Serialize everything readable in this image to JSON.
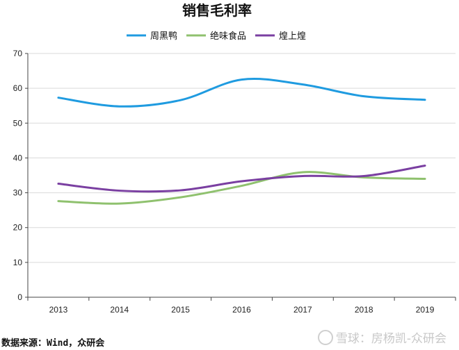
{
  "chart_data": {
    "type": "line",
    "title": "销售毛利率",
    "categories": [
      "2013",
      "2014",
      "2015",
      "2016",
      "2017",
      "2018",
      "2019"
    ],
    "ylim": [
      0,
      70
    ],
    "yticks": [
      0,
      10,
      20,
      30,
      40,
      50,
      60,
      70
    ],
    "grid": "horizontal",
    "legend_position": "top",
    "series": [
      {
        "name": "周黑鸭",
        "color": "#1f9be0",
        "values": [
          57.3,
          54.8,
          56.6,
          62.5,
          61.1,
          57.7,
          56.7
        ]
      },
      {
        "name": "绝味食品",
        "color": "#8fc16e",
        "values": [
          27.6,
          26.9,
          28.7,
          32.0,
          35.9,
          34.4,
          34.0
        ]
      },
      {
        "name": "煌上煌",
        "color": "#7a3fa1",
        "values": [
          32.6,
          30.6,
          30.7,
          33.3,
          34.8,
          34.8,
          37.8
        ]
      }
    ]
  },
  "footer": {
    "source": "数据来源：Wind，众研会",
    "watermark": "雪球：房杨凯-众研会"
  }
}
